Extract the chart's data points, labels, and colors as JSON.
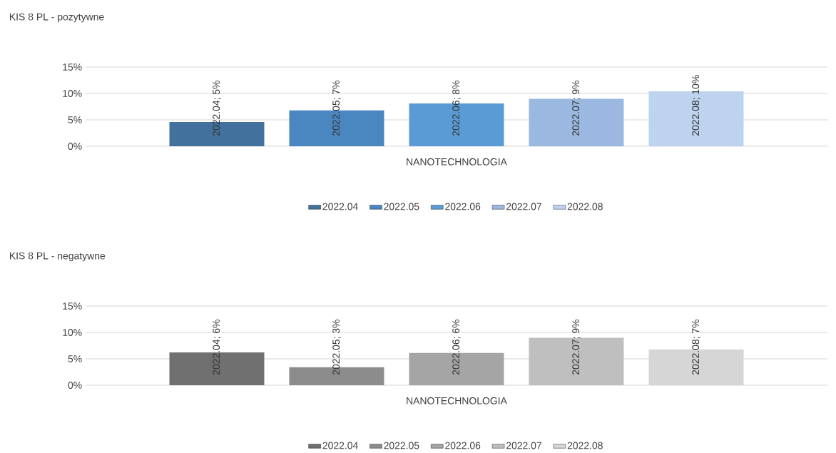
{
  "chart_data": [
    {
      "type": "bar",
      "title": "KIS 8 PL - pozytywne",
      "categories": [
        "NANOTECHNOLOGIA"
      ],
      "ylim": [
        0,
        15
      ],
      "yticks": [
        {
          "value": 0,
          "label": "0%"
        },
        {
          "value": 5,
          "label": "5%"
        },
        {
          "value": 10,
          "label": "10%"
        },
        {
          "value": 15,
          "label": "15%"
        }
      ],
      "grid": "y",
      "legend": "bottom",
      "series": [
        {
          "name": "2022.04",
          "color": "#41719c",
          "values": [
            4.6
          ],
          "value_labels": [
            "2022.04; 5%"
          ]
        },
        {
          "name": "2022.05",
          "color": "#4a86c0",
          "values": [
            6.8
          ],
          "value_labels": [
            "2022.05; 7%"
          ]
        },
        {
          "name": "2022.06",
          "color": "#5b9bd5",
          "values": [
            8.1
          ],
          "value_labels": [
            "2022.06; 8%"
          ]
        },
        {
          "name": "2022.07",
          "color": "#9bb9e0",
          "values": [
            9.0
          ],
          "value_labels": [
            "2022.07; 9%"
          ]
        },
        {
          "name": "2022.08",
          "color": "#bdd3ee",
          "values": [
            10.4
          ],
          "value_labels": [
            "2022.08; 10%"
          ]
        }
      ]
    },
    {
      "type": "bar",
      "title": "KIS 8 PL - negatywne",
      "categories": [
        "NANOTECHNOLOGIA"
      ],
      "ylim": [
        0,
        15
      ],
      "yticks": [
        {
          "value": 0,
          "label": "0%"
        },
        {
          "value": 5,
          "label": "5%"
        },
        {
          "value": 10,
          "label": "10%"
        },
        {
          "value": 15,
          "label": "15%"
        }
      ],
      "grid": "y",
      "legend": "bottom",
      "series": [
        {
          "name": "2022.04",
          "color": "#707070",
          "values": [
            6.2
          ],
          "value_labels": [
            "2022.04; 6%"
          ]
        },
        {
          "name": "2022.05",
          "color": "#8c8c8c",
          "values": [
            3.4
          ],
          "value_labels": [
            "2022.05; 3%"
          ]
        },
        {
          "name": "2022.06",
          "color": "#a5a5a5",
          "values": [
            6.1
          ],
          "value_labels": [
            "2022.06; 6%"
          ]
        },
        {
          "name": "2022.07",
          "color": "#bfbfbf",
          "values": [
            9.0
          ],
          "value_labels": [
            "2022.07; 9%"
          ]
        },
        {
          "name": "2022.08",
          "color": "#d6d6d6",
          "values": [
            6.8
          ],
          "value_labels": [
            "2022.08; 7%"
          ]
        }
      ]
    }
  ]
}
